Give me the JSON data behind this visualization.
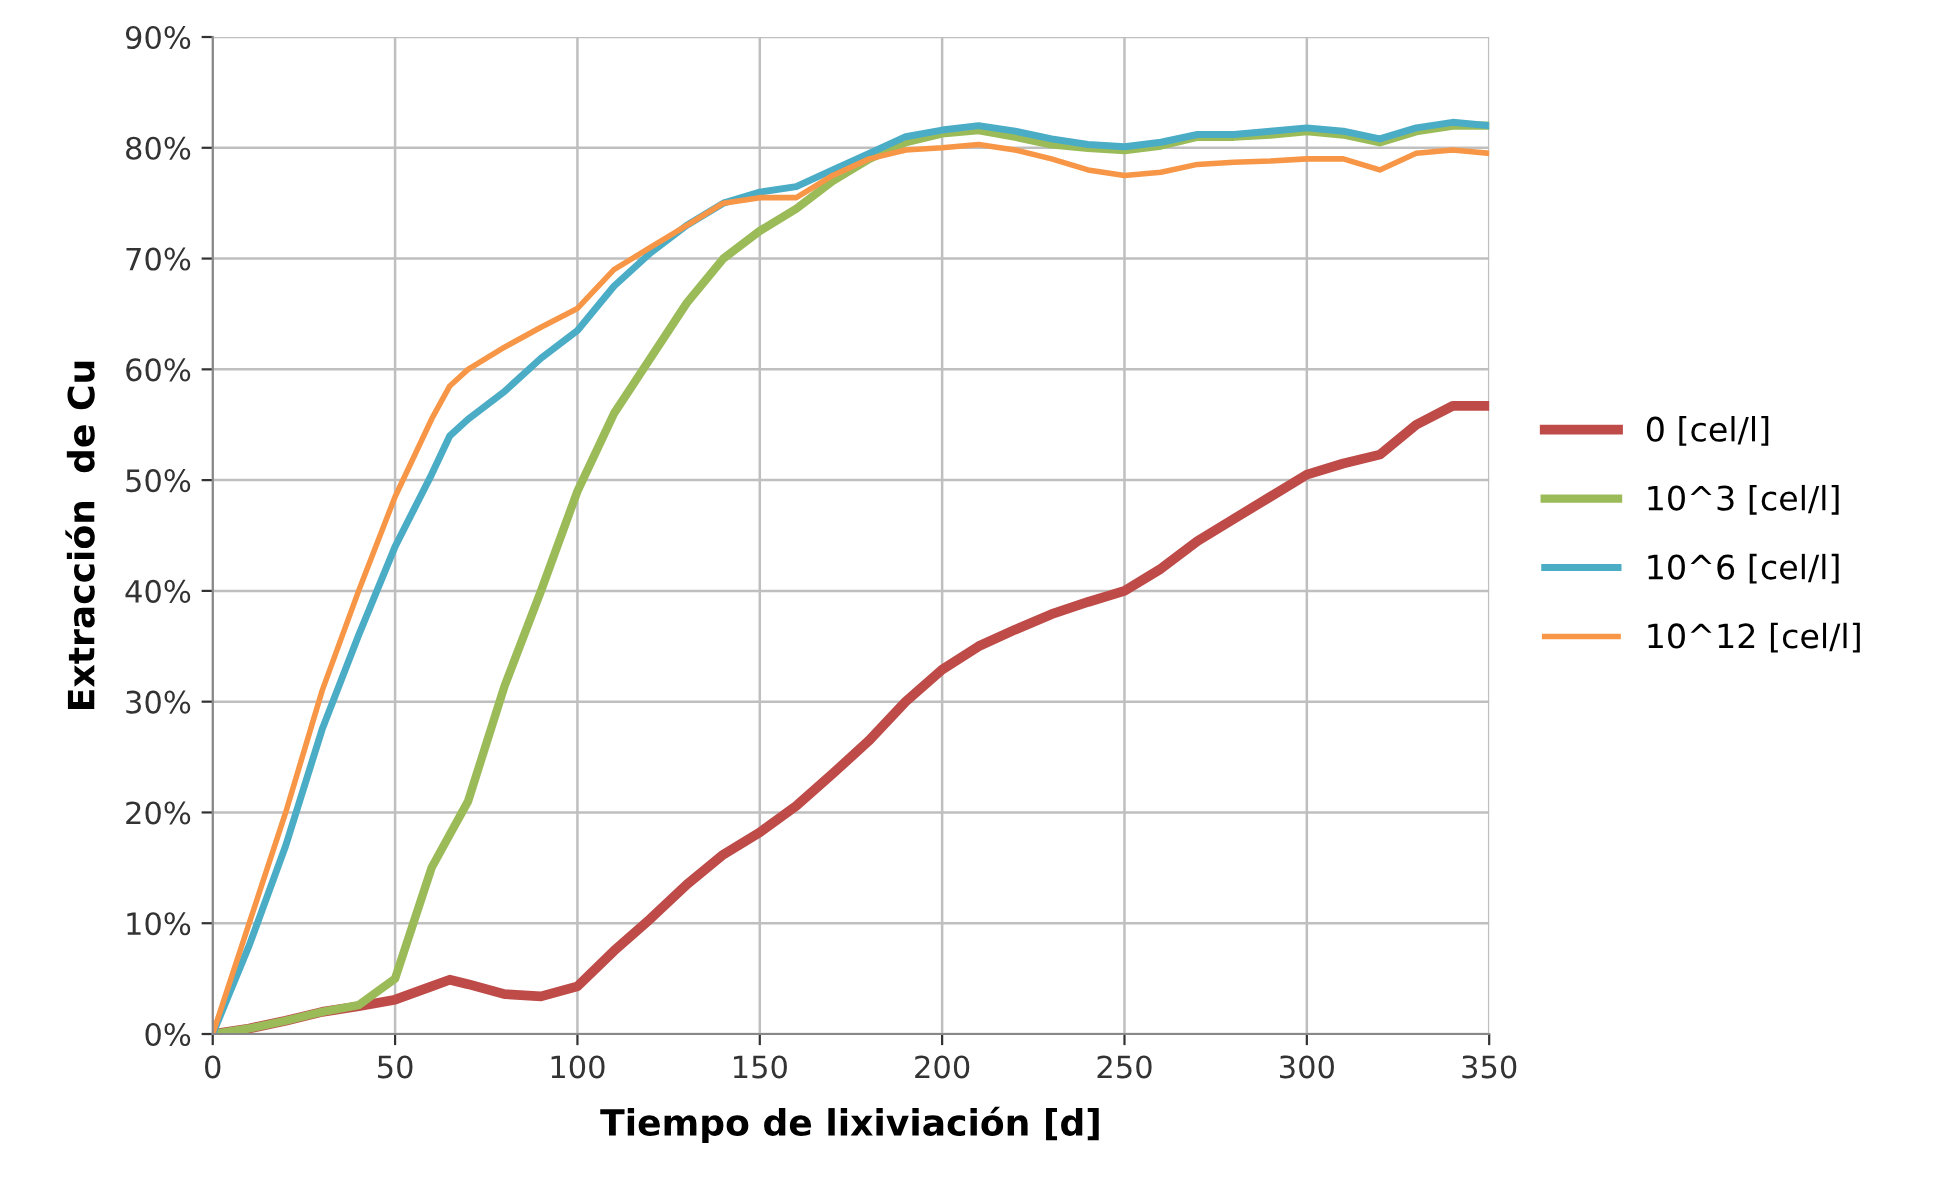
{
  "chart_data": {
    "type": "line",
    "xlabel": "Tiempo de lixiviación [d]",
    "ylabel": "Extracción  de Cu",
    "x": [
      0,
      10,
      20,
      30,
      40,
      50,
      60,
      65,
      70,
      80,
      90,
      100,
      110,
      120,
      130,
      140,
      150,
      160,
      170,
      180,
      190,
      200,
      210,
      220,
      230,
      240,
      250,
      260,
      270,
      280,
      290,
      300,
      310,
      320,
      330,
      340,
      350
    ],
    "series": [
      {
        "name": "0 [cel/l]",
        "color": "#be4b48",
        "values": [
          0,
          0.5,
          1.2,
          2,
          2.5,
          3.1,
          4.3,
          4.9,
          4.5,
          3.6,
          3.4,
          4.3,
          7.5,
          10.4,
          13.5,
          16.2,
          18.2,
          20.6,
          23.5,
          26.5,
          30,
          32.9,
          35,
          36.5,
          37.9,
          39,
          40,
          42,
          44.5,
          46.5,
          48.5,
          50.5,
          51.5,
          52.3,
          55,
          56.7,
          56.7
        ]
      },
      {
        "name": "10^3 [cel/l]",
        "color": "#9bbb59",
        "values": [
          0,
          0.5,
          1.2,
          2,
          2.6,
          5,
          15,
          18,
          21,
          31.4,
          40,
          49,
          56,
          61,
          66,
          70,
          72.5,
          74.5,
          77,
          79,
          80.5,
          81.3,
          81.6,
          81,
          80.3,
          80,
          79.8,
          80.2,
          81,
          81,
          81.2,
          81.5,
          81.2,
          80.5,
          81.5,
          82,
          82
        ]
      },
      {
        "name": "10^6 [cel/l]",
        "color": "#4bacc6",
        "values": [
          0,
          8,
          17,
          27.5,
          36,
          44,
          50.5,
          54,
          55.5,
          58,
          61,
          63.5,
          67.5,
          70.5,
          73,
          75,
          76,
          76.5,
          78,
          79.5,
          81,
          81.6,
          82,
          81.5,
          80.8,
          80.3,
          80.1,
          80.5,
          81.2,
          81.2,
          81.5,
          81.8,
          81.5,
          80.8,
          81.8,
          82.3,
          82
        ]
      },
      {
        "name": "10^12 [cel/l]",
        "color": "#f79646",
        "values": [
          0,
          10,
          20,
          31,
          40,
          48.5,
          55.5,
          58.5,
          60,
          62,
          63.8,
          65.5,
          69,
          71,
          73,
          75,
          75.5,
          75.5,
          77.5,
          79,
          79.8,
          80,
          80.3,
          79.8,
          79,
          78,
          77.5,
          77.8,
          78.5,
          78.7,
          78.8,
          79,
          79,
          78,
          79.5,
          79.8,
          79.5
        ]
      }
    ],
    "xlim": [
      0,
      350
    ],
    "xticks": [
      0,
      50,
      100,
      150,
      200,
      250,
      300,
      350
    ],
    "ylim": [
      0,
      90
    ],
    "yticks": [
      {
        "value": 0,
        "label": "0%"
      },
      {
        "value": 10,
        "label": "10%"
      },
      {
        "value": 20,
        "label": "20%"
      },
      {
        "value": 30,
        "label": "30%"
      },
      {
        "value": 40,
        "label": "40%"
      },
      {
        "value": 50,
        "label": "50%"
      },
      {
        "value": 60,
        "label": "60%"
      },
      {
        "value": 70,
        "label": "70%"
      },
      {
        "value": 80,
        "label": "80%"
      },
      {
        "value": 90,
        "label": "90%"
      }
    ],
    "grid": true,
    "legend": "right",
    "marker": "none",
    "line_style": "solid"
  }
}
